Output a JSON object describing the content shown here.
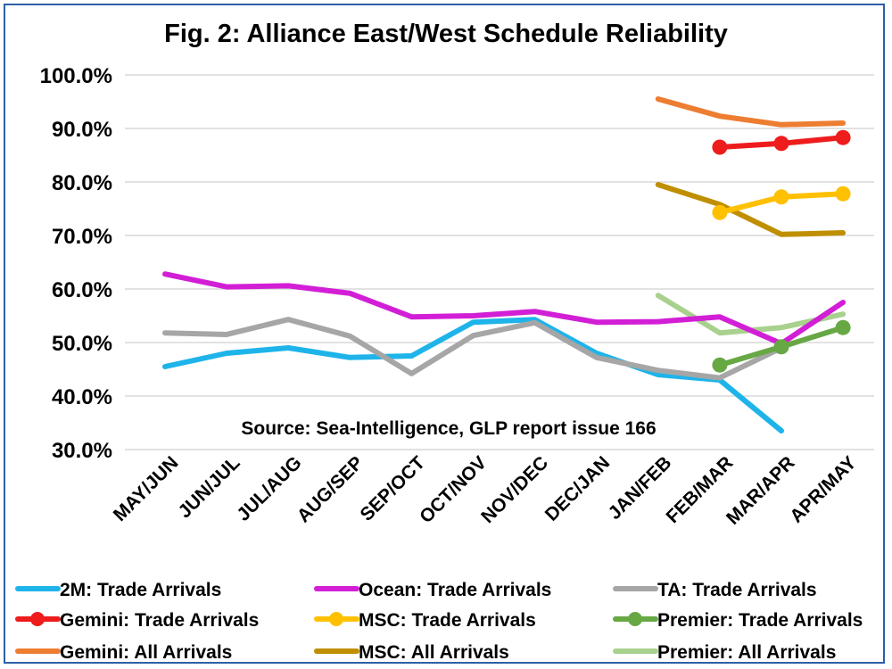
{
  "chart_data": {
    "type": "line",
    "title": "Fig. 2: Alliance East/West Schedule Reliability",
    "annotation": "Source: Sea-Intelligence, GLP report issue 166",
    "categories": [
      "MAY/JUN",
      "JUN/JUL",
      "JUL/AUG",
      "AUG/SEP",
      "SEP/OCT",
      "OCT/NOV",
      "NOV/DEC",
      "DEC/JAN",
      "JAN/FEB",
      "FEB/MAR",
      "MAR/APR",
      "APR/MAY"
    ],
    "y_ticks": [
      "30.0%",
      "40.0%",
      "50.0%",
      "60.0%",
      "70.0%",
      "80.0%",
      "90.0%",
      "100.0%"
    ],
    "ylim": [
      30,
      100
    ],
    "grid": true,
    "legend_position": "bottom",
    "series": [
      {
        "name": "2M: Trade Arrivals",
        "color": "#1eb4ea",
        "marker": false,
        "values": [
          45.5,
          48.0,
          49.0,
          47.2,
          47.5,
          53.8,
          54.3,
          48.0,
          44.0,
          43.0,
          33.5,
          null
        ]
      },
      {
        "name": "Ocean: Trade Arrivals",
        "color": "#d21fd6",
        "marker": false,
        "values": [
          62.8,
          60.4,
          60.6,
          59.2,
          54.8,
          55.0,
          55.8,
          53.8,
          53.9,
          54.8,
          49.8,
          57.5
        ]
      },
      {
        "name": "TA: Trade Arrivals",
        "color": "#a6a6a6",
        "marker": false,
        "values": [
          51.8,
          51.5,
          54.3,
          51.2,
          44.2,
          51.3,
          53.7,
          47.2,
          44.8,
          43.4,
          49.0,
          null
        ]
      },
      {
        "name": "Gemini: Trade Arrivals",
        "color": "#ee1c1c",
        "marker": true,
        "values": [
          null,
          null,
          null,
          null,
          null,
          null,
          null,
          null,
          null,
          86.5,
          87.2,
          88.3
        ]
      },
      {
        "name": "MSC: Trade Arrivals",
        "color": "#ffc000",
        "marker": true,
        "values": [
          null,
          null,
          null,
          null,
          null,
          null,
          null,
          null,
          null,
          74.3,
          77.2,
          77.8
        ]
      },
      {
        "name": "Premier: Trade Arrivals",
        "color": "#67a845",
        "marker": true,
        "values": [
          null,
          null,
          null,
          null,
          null,
          null,
          null,
          null,
          null,
          45.8,
          49.2,
          52.8
        ]
      },
      {
        "name": "Gemini: All Arrivals",
        "color": "#ed7d31",
        "marker": false,
        "values": [
          null,
          null,
          null,
          null,
          null,
          null,
          null,
          null,
          95.5,
          92.3,
          90.7,
          91.0
        ]
      },
      {
        "name": "MSC: All Arrivals",
        "color": "#bf8f00",
        "marker": false,
        "values": [
          null,
          null,
          null,
          null,
          null,
          null,
          null,
          null,
          79.5,
          75.8,
          70.2,
          70.5
        ]
      },
      {
        "name": "Premier: All Arrivals",
        "color": "#a9d18e",
        "marker": false,
        "values": [
          null,
          null,
          null,
          null,
          null,
          null,
          null,
          null,
          58.8,
          51.8,
          52.8,
          55.3
        ]
      }
    ]
  }
}
